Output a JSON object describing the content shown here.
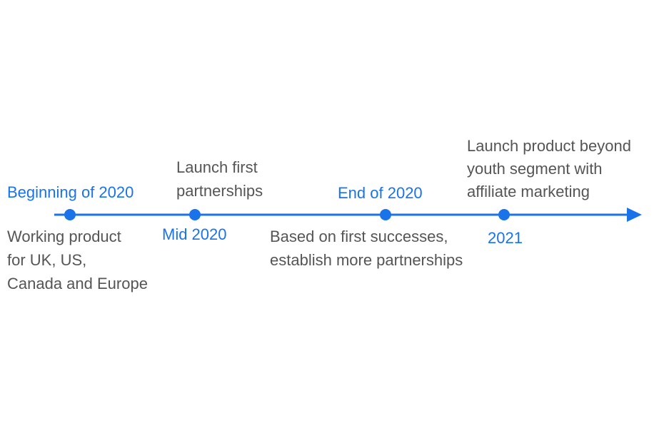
{
  "colors": {
    "accent": "#1a73e8",
    "text": "#555555",
    "background": "#ffffff"
  },
  "milestones": [
    {
      "date": "Beginning of 2020",
      "description": [
        "Working product",
        "for UK, US,",
        "Canada and Europe"
      ]
    },
    {
      "date": "Mid 2020",
      "description": [
        "Launch first",
        "partnerships"
      ]
    },
    {
      "date": "End of 2020",
      "description": [
        "Based on first successes,",
        "establish more partnerships"
      ]
    },
    {
      "date": "2021",
      "description": [
        "Launch product beyond",
        "youth segment with",
        "affiliate marketing"
      ]
    }
  ]
}
